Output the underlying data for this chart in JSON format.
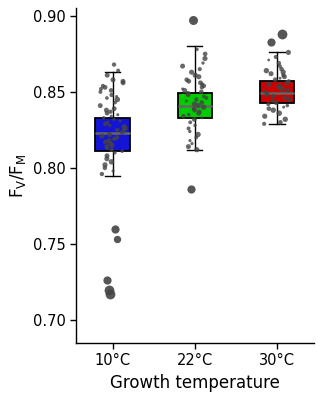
{
  "categories": [
    "10°C",
    "22°C",
    "30°C"
  ],
  "box_colors": [
    "#1414d4",
    "#00cc00",
    "#cc0000"
  ],
  "median_color": "#666666",
  "dot_color": "#444444",
  "ylim": [
    0.685,
    0.905
  ],
  "yticks": [
    0.7,
    0.75,
    0.8,
    0.85,
    0.9
  ],
  "xlabel": "Growth temperature",
  "box_width": 0.42,
  "groups": {
    "10C": {
      "q1": 0.811,
      "median": 0.823,
      "q3": 0.833,
      "whisker_low": 0.795,
      "whisker_high": 0.863,
      "outliers": [
        0.76,
        0.753,
        0.726,
        0.72,
        0.717
      ],
      "jitter_points": [
        0.868,
        0.864,
        0.861,
        0.858,
        0.857,
        0.856,
        0.854,
        0.853,
        0.852,
        0.851,
        0.85,
        0.848,
        0.847,
        0.846,
        0.845,
        0.843,
        0.841,
        0.839,
        0.838,
        0.837,
        0.836,
        0.835,
        0.834,
        0.833,
        0.832,
        0.831,
        0.83,
        0.829,
        0.828,
        0.827,
        0.826,
        0.825,
        0.824,
        0.823,
        0.822,
        0.821,
        0.82,
        0.819,
        0.818,
        0.817,
        0.816,
        0.815,
        0.814,
        0.813,
        0.812,
        0.811,
        0.81,
        0.808,
        0.806,
        0.804,
        0.802,
        0.8,
        0.798,
        0.796
      ]
    },
    "22C": {
      "q1": 0.833,
      "median": 0.841,
      "q3": 0.849,
      "whisker_low": 0.812,
      "whisker_high": 0.88,
      "outliers": [
        0.786,
        0.897
      ],
      "jitter_points": [
        0.878,
        0.875,
        0.872,
        0.869,
        0.867,
        0.865,
        0.863,
        0.861,
        0.86,
        0.858,
        0.857,
        0.856,
        0.855,
        0.854,
        0.853,
        0.852,
        0.851,
        0.85,
        0.849,
        0.848,
        0.847,
        0.846,
        0.845,
        0.844,
        0.843,
        0.842,
        0.841,
        0.84,
        0.839,
        0.838,
        0.837,
        0.836,
        0.835,
        0.834,
        0.833,
        0.832,
        0.83,
        0.828,
        0.826,
        0.824,
        0.822,
        0.82,
        0.818,
        0.816,
        0.814,
        0.812
      ]
    },
    "30C": {
      "q1": 0.843,
      "median": 0.849,
      "q3": 0.857,
      "whisker_low": 0.829,
      "whisker_high": 0.876,
      "outliers": [
        0.888,
        0.883
      ],
      "jitter_points": [
        0.876,
        0.873,
        0.871,
        0.869,
        0.867,
        0.865,
        0.864,
        0.863,
        0.862,
        0.861,
        0.86,
        0.859,
        0.858,
        0.857,
        0.856,
        0.855,
        0.854,
        0.853,
        0.852,
        0.851,
        0.85,
        0.849,
        0.848,
        0.847,
        0.846,
        0.845,
        0.844,
        0.843,
        0.842,
        0.841,
        0.84,
        0.839,
        0.838,
        0.836,
        0.834,
        0.832,
        0.83,
        0.829
      ]
    }
  }
}
